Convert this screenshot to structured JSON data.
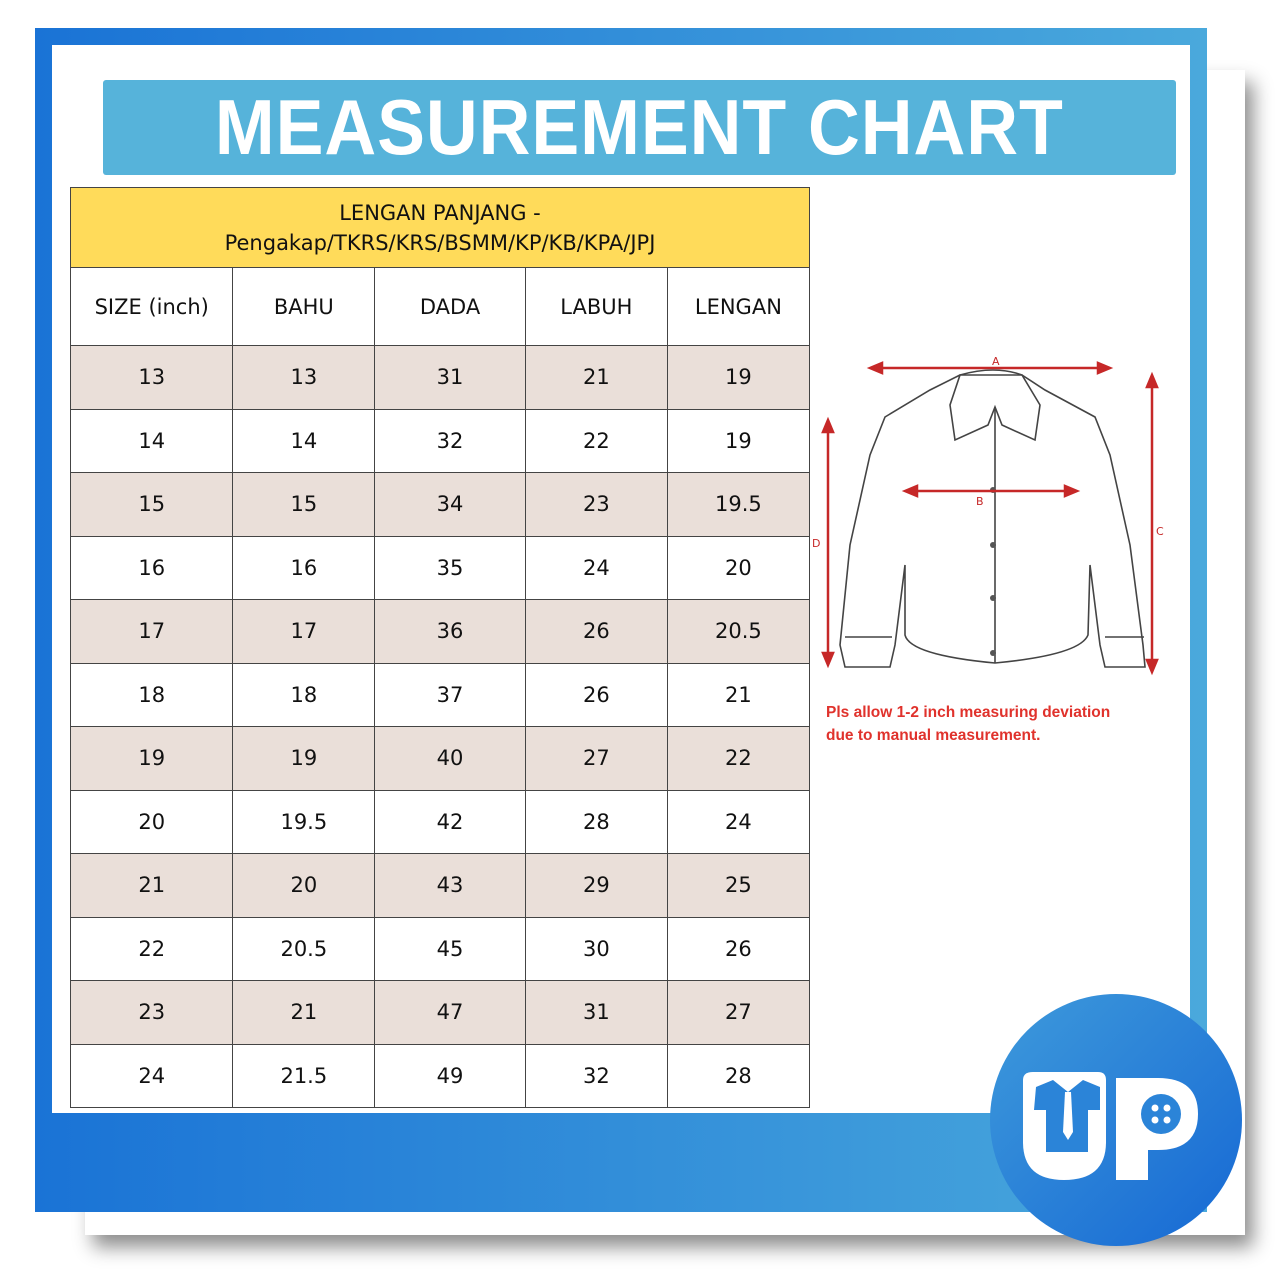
{
  "title": "MEASUREMENT CHART",
  "table": {
    "caption_line1": "LENGAN PANJANG -",
    "caption_line2": "Pengakap/TKRS/KRS/BSMM/KP/KB/KPA/JPJ",
    "headers": [
      "SIZE (inch)",
      "BAHU",
      "DADA",
      "LABUH",
      "LENGAN"
    ],
    "rows": [
      [
        "13",
        "13",
        "31",
        "21",
        "19"
      ],
      [
        "14",
        "14",
        "32",
        "22",
        "19"
      ],
      [
        "15",
        "15",
        "34",
        "23",
        "19.5"
      ],
      [
        "16",
        "16",
        "35",
        "24",
        "20"
      ],
      [
        "17",
        "17",
        "36",
        "26",
        "20.5"
      ],
      [
        "18",
        "18",
        "37",
        "26",
        "21"
      ],
      [
        "19",
        "19",
        "40",
        "27",
        "22"
      ],
      [
        "20",
        "19.5",
        "42",
        "28",
        "24"
      ],
      [
        "21",
        "20",
        "43",
        "29",
        "25"
      ],
      [
        "22",
        "20.5",
        "45",
        "30",
        "26"
      ],
      [
        "23",
        "21",
        "47",
        "31",
        "27"
      ],
      [
        "24",
        "21.5",
        "49",
        "32",
        "28"
      ]
    ]
  },
  "diagram": {
    "labels": [
      "A",
      "B",
      "C",
      "D"
    ],
    "arrow_color": "#c62828"
  },
  "note": {
    "line1": "Pls allow 1-2 inch measuring deviation",
    "line2": "due to manual measurement."
  },
  "logo": {
    "text": "UP"
  },
  "colors": {
    "title_bg": "#56b3da",
    "caption_bg": "#ffdb5a",
    "row_alt": "#eadfd9",
    "note": "#e0322c",
    "frame": "#1a73d6"
  }
}
